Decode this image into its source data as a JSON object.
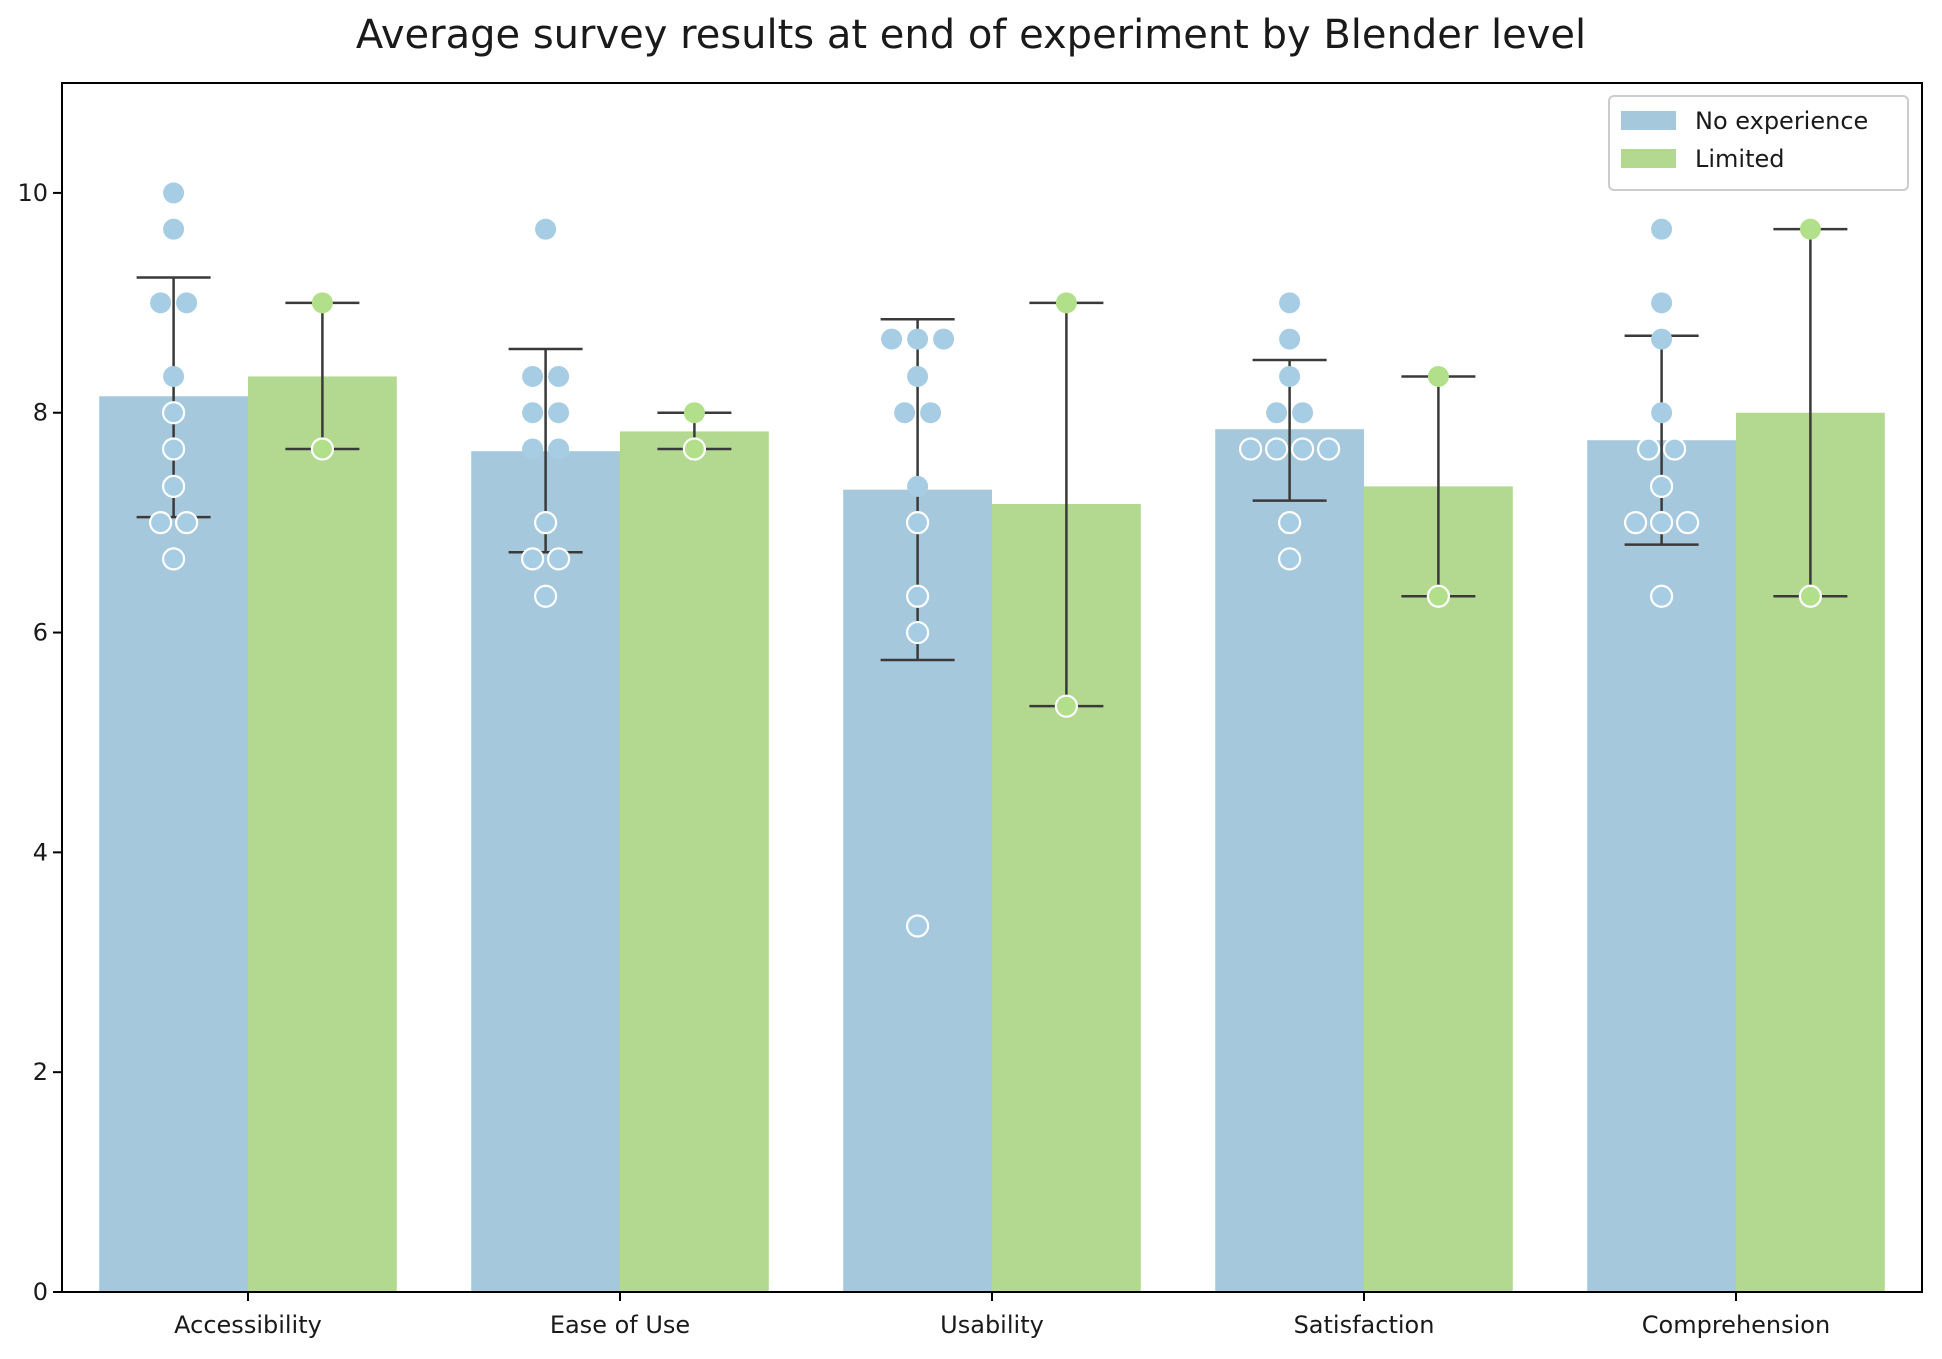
{
  "chart_data": {
    "type": "bar",
    "title": "Average survey results at end of experiment by Blender level",
    "xlabel": "",
    "ylabel": "",
    "ylim": [
      0,
      11
    ],
    "yticks": [
      0,
      2,
      4,
      6,
      8,
      10
    ],
    "grid": false,
    "legend_position": "top-right",
    "categories": [
      "Accessibility",
      "Ease of Use",
      "Usability",
      "Satisfaction",
      "Comprehension"
    ],
    "series": [
      {
        "name": "No experience",
        "color": "#a6c8dc",
        "point_color": "#a6cde3",
        "values": [
          8.15,
          7.65,
          7.3,
          7.85,
          7.75
        ],
        "error_bars": [
          [
            7.05,
            9.23
          ],
          [
            6.73,
            8.58
          ],
          [
            5.75,
            8.85
          ],
          [
            7.2,
            8.48
          ],
          [
            6.8,
            8.7
          ]
        ],
        "points": [
          [
            10,
            9.67,
            9,
            9,
            8.33,
            8,
            7.67,
            7.33,
            7,
            7,
            6.67
          ],
          [
            9.67,
            8.33,
            8.33,
            8,
            8,
            7.67,
            7.67,
            7,
            6.67,
            6.67,
            6.33
          ],
          [
            8.67,
            8.67,
            8.67,
            8.33,
            8,
            8,
            7.33,
            7,
            6.33,
            6,
            3.33
          ],
          [
            9,
            8.67,
            8.33,
            8,
            8,
            7.67,
            7.67,
            7.67,
            7.67,
            7,
            6.67
          ],
          [
            9.67,
            9,
            8.67,
            8,
            7.67,
            7.67,
            7.33,
            7,
            7,
            7,
            6.33
          ]
        ]
      },
      {
        "name": "Limited",
        "color": "#b2d98f",
        "point_color": "#b2df8a",
        "values": [
          8.33,
          7.83,
          7.17,
          7.33,
          8.0
        ],
        "error_bars": [
          [
            7.67,
            9.0
          ],
          [
            7.67,
            8.0
          ],
          [
            5.33,
            9.0
          ],
          [
            6.33,
            8.33
          ],
          [
            6.33,
            9.67
          ]
        ],
        "points": [
          [
            9,
            7.67
          ],
          [
            8,
            7.67
          ],
          [
            9,
            5.33
          ],
          [
            8.33,
            6.33
          ],
          [
            9.67,
            6.33
          ]
        ]
      }
    ]
  }
}
